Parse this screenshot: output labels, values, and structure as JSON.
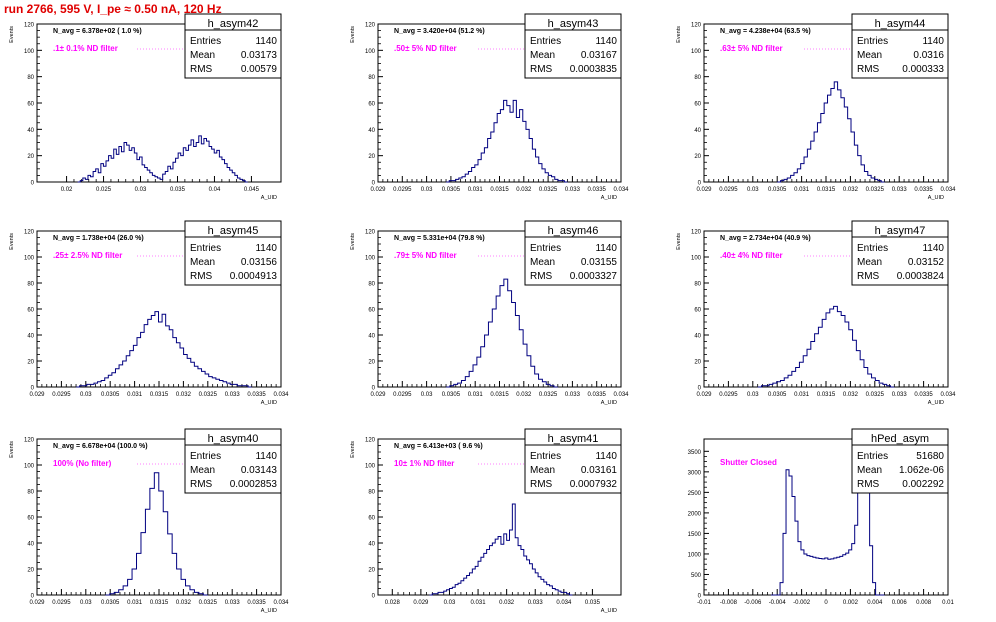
{
  "page": {
    "title": "run 2766,   595 V, I_pe ≈ 0.50 nA, 120 Hz"
  },
  "colors": {
    "title": "#e00000",
    "hist_line": "#000080",
    "filter_label": "#ff00ff",
    "axis": "#000000",
    "background": "#ffffff"
  },
  "stat_labels": {
    "entries": "Entries",
    "mean": "Mean",
    "rms": "RMS"
  },
  "chart_data": [
    {
      "type": "histogram",
      "name": "h_asym42",
      "navg": "N_avg = 6.378e+02 ( 1.0 %)",
      "filter": ".1± 0.1% ND filter",
      "stats": {
        "entries": "1140",
        "mean": "0.03173",
        "rms": "0.00579"
      },
      "xlabel": "A_UID",
      "ylabel": "Events",
      "xlim": [
        0.016,
        0.049
      ],
      "ylim": [
        0,
        120
      ],
      "xticks": [
        "0.02",
        "0.025",
        "0.03",
        "0.035",
        "0.04",
        "0.045"
      ],
      "xtick_values": [
        0.02,
        0.025,
        0.03,
        0.035,
        0.04,
        0.045
      ],
      "yticks": [
        "0",
        "20",
        "40",
        "60",
        "80",
        "100",
        "120"
      ],
      "ytick_values": [
        0,
        20,
        40,
        60,
        80,
        100,
        120
      ],
      "bin_range": [
        0.0215,
        0.0445
      ],
      "values": [
        0,
        1,
        3,
        2,
        5,
        4,
        8,
        10,
        7,
        14,
        12,
        16,
        20,
        18,
        25,
        21,
        27,
        23,
        30,
        28,
        24,
        26,
        22,
        17,
        19,
        13,
        11,
        9,
        7,
        5,
        4,
        3,
        2,
        6,
        8,
        12,
        10,
        15,
        18,
        22,
        20,
        26,
        24,
        28,
        32,
        27,
        30,
        35,
        29,
        33,
        31,
        27,
        25,
        22,
        24,
        19,
        17,
        14,
        11,
        9,
        7,
        5,
        3,
        2,
        1,
        0
      ]
    },
    {
      "type": "histogram",
      "name": "h_asym43",
      "navg": "N_avg = 3.420e+04 (51.2 %)",
      "filter": ".50± 5% ND filter",
      "stats": {
        "entries": "1140",
        "mean": "0.03167",
        "rms": "0.0003835"
      },
      "xlabel": "A_UID",
      "ylabel": "Events",
      "xlim": [
        0.029,
        0.034
      ],
      "ylim": [
        0,
        120
      ],
      "xticks": [
        "0.029",
        "0.0295",
        "0.03",
        "0.0305",
        "0.031",
        "0.0315",
        "0.032",
        "0.0325",
        "0.033",
        "0.0335",
        "0.034"
      ],
      "xtick_values": [
        0.029,
        0.0295,
        0.03,
        0.0305,
        0.031,
        0.0315,
        0.032,
        0.0325,
        0.033,
        0.0335,
        0.034
      ],
      "yticks": [
        "0",
        "20",
        "40",
        "60",
        "80",
        "100",
        "120"
      ],
      "ytick_values": [
        0,
        20,
        40,
        60,
        80,
        100,
        120
      ],
      "bin_range": [
        0.0304,
        0.0329
      ],
      "values": [
        0,
        1,
        1,
        2,
        3,
        4,
        6,
        8,
        11,
        13,
        17,
        22,
        26,
        33,
        38,
        45,
        52,
        55,
        62,
        58,
        53,
        62,
        49,
        55,
        46,
        40,
        33,
        25,
        19,
        14,
        10,
        7,
        5,
        4,
        2,
        1,
        1,
        0
      ]
    },
    {
      "type": "histogram",
      "name": "h_asym44",
      "navg": "N_avg = 4.238e+04 (63.5 %)",
      "filter": ".63± 5% ND filter",
      "stats": {
        "entries": "1140",
        "mean": "0.0316",
        "rms": "0.000333"
      },
      "xlabel": "A_UID",
      "ylabel": "Events",
      "xlim": [
        0.029,
        0.034
      ],
      "ylim": [
        0,
        120
      ],
      "xticks": [
        "0.029",
        "0.0295",
        "0.03",
        "0.0305",
        "0.031",
        "0.0315",
        "0.032",
        "0.0325",
        "0.033",
        "0.0335",
        "0.034"
      ],
      "xtick_values": [
        0.029,
        0.0295,
        0.03,
        0.0305,
        0.031,
        0.0315,
        0.032,
        0.0325,
        0.033,
        0.0335,
        0.034
      ],
      "yticks": [
        "0",
        "20",
        "40",
        "60",
        "80",
        "100",
        "120"
      ],
      "ytick_values": [
        0,
        20,
        40,
        60,
        80,
        100,
        120
      ],
      "bin_range": [
        0.0305,
        0.0327
      ],
      "values": [
        0,
        1,
        2,
        3,
        5,
        7,
        10,
        14,
        19,
        25,
        31,
        38,
        45,
        52,
        60,
        66,
        71,
        76,
        70,
        64,
        57,
        48,
        38,
        28,
        20,
        13,
        8,
        5,
        3,
        2,
        1,
        0
      ]
    },
    {
      "type": "histogram",
      "name": "h_asym45",
      "navg": "N_avg = 1.738e+04 (26.0 %)",
      "filter": ".25± 2.5% ND filter",
      "stats": {
        "entries": "1140",
        "mean": "0.03156",
        "rms": "0.0004913"
      },
      "xlabel": "A_UID",
      "ylabel": "Events",
      "xlim": [
        0.029,
        0.034
      ],
      "ylim": [
        0,
        120
      ],
      "xticks": [
        "0.029",
        "0.0295",
        "0.03",
        "0.0305",
        "0.031",
        "0.0315",
        "0.032",
        "0.0325",
        "0.033",
        "0.0335",
        "0.034"
      ],
      "xtick_values": [
        0.029,
        0.0295,
        0.03,
        0.0305,
        0.031,
        0.0315,
        0.032,
        0.0325,
        0.033,
        0.0335,
        0.034
      ],
      "yticks": [
        "0",
        "20",
        "40",
        "60",
        "80",
        "100",
        "120"
      ],
      "ytick_values": [
        0,
        20,
        40,
        60,
        80,
        100,
        120
      ],
      "bin_range": [
        0.0298,
        0.0334
      ],
      "values": [
        0,
        1,
        1,
        2,
        2,
        3,
        4,
        5,
        7,
        9,
        11,
        14,
        17,
        20,
        24,
        28,
        32,
        38,
        42,
        48,
        52,
        55,
        58,
        50,
        56,
        47,
        44,
        38,
        34,
        30,
        25,
        22,
        19,
        16,
        14,
        12,
        10,
        8,
        7,
        6,
        5,
        4,
        3,
        2,
        2,
        1,
        1,
        1,
        0
      ]
    },
    {
      "type": "histogram",
      "name": "h_asym46",
      "navg": "N_avg = 5.331e+04 (79.8 %)",
      "filter": ".79± 5% ND filter",
      "stats": {
        "entries": "1140",
        "mean": "0.03155",
        "rms": "0.0003327"
      },
      "xlabel": "A_UID",
      "ylabel": "Events",
      "xlim": [
        0.029,
        0.034
      ],
      "ylim": [
        0,
        120
      ],
      "xticks": [
        "0.029",
        "0.0295",
        "0.03",
        "0.0305",
        "0.031",
        "0.0315",
        "0.032",
        "0.0325",
        "0.033",
        "0.0335",
        "0.034"
      ],
      "xtick_values": [
        0.029,
        0.0295,
        0.03,
        0.0305,
        0.031,
        0.0315,
        0.032,
        0.0325,
        0.033,
        0.0335,
        0.034
      ],
      "yticks": [
        "0",
        "20",
        "40",
        "60",
        "80",
        "100",
        "120"
      ],
      "ytick_values": [
        0,
        20,
        40,
        60,
        80,
        100,
        120
      ],
      "bin_range": [
        0.0304,
        0.0327
      ],
      "values": [
        0,
        1,
        2,
        3,
        5,
        8,
        12,
        17,
        23,
        31,
        40,
        50,
        60,
        70,
        78,
        83,
        74,
        65,
        55,
        44,
        33,
        24,
        16,
        10,
        6,
        4,
        2,
        1,
        0
      ]
    },
    {
      "type": "histogram",
      "name": "h_asym47",
      "navg": "N_avg = 2.734e+04 (40.9 %)",
      "filter": ".40± 4% ND filter",
      "stats": {
        "entries": "1140",
        "mean": "0.03152",
        "rms": "0.0003824"
      },
      "xlabel": "A_UID",
      "ylabel": "Events",
      "xlim": [
        0.029,
        0.034
      ],
      "ylim": [
        0,
        120
      ],
      "xticks": [
        "0.029",
        "0.0295",
        "0.03",
        "0.0305",
        "0.031",
        "0.0315",
        "0.032",
        "0.0325",
        "0.033",
        "0.0335",
        "0.034"
      ],
      "xtick_values": [
        0.029,
        0.0295,
        0.03,
        0.0305,
        0.031,
        0.0315,
        0.032,
        0.0325,
        0.033,
        0.0335,
        0.034
      ],
      "yticks": [
        "0",
        "20",
        "40",
        "60",
        "80",
        "100",
        "120"
      ],
      "ytick_values": [
        0,
        20,
        40,
        60,
        80,
        100,
        120
      ],
      "bin_range": [
        0.0301,
        0.0329
      ],
      "values": [
        0,
        1,
        1,
        2,
        3,
        4,
        5,
        7,
        9,
        12,
        15,
        19,
        24,
        29,
        35,
        41,
        46,
        52,
        57,
        60,
        62,
        58,
        55,
        50,
        44,
        36,
        28,
        21,
        15,
        10,
        7,
        5,
        3,
        2,
        1,
        0
      ]
    },
    {
      "type": "histogram",
      "name": "h_asym40",
      "navg": "N_avg = 6.678e+04 (100.0 %)",
      "filter": "100% (No filter)",
      "stats": {
        "entries": "1140",
        "mean": "0.03143",
        "rms": "0.0002853"
      },
      "xlabel": "A_UID",
      "ylabel": "Events",
      "xlim": [
        0.029,
        0.034
      ],
      "ylim": [
        0,
        120
      ],
      "xticks": [
        "0.029",
        "0.0295",
        "0.03",
        "0.0305",
        "0.031",
        "0.0315",
        "0.032",
        "0.0325",
        "0.033",
        "0.0335",
        "0.034"
      ],
      "xtick_values": [
        0.029,
        0.0295,
        0.03,
        0.0305,
        0.031,
        0.0315,
        0.032,
        0.0325,
        0.033,
        0.0335,
        0.034
      ],
      "yticks": [
        "0",
        "20",
        "40",
        "60",
        "80",
        "100",
        "120"
      ],
      "ytick_values": [
        0,
        20,
        40,
        60,
        80,
        100,
        120
      ],
      "bin_range": [
        0.0304,
        0.0325
      ],
      "values": [
        0,
        1,
        2,
        4,
        7,
        12,
        20,
        32,
        48,
        66,
        82,
        94,
        80,
        64,
        47,
        32,
        20,
        12,
        7,
        4,
        2,
        1,
        0
      ]
    },
    {
      "type": "histogram",
      "name": "h_asym41",
      "navg": "N_avg = 6.413e+03 ( 9.6 %)",
      "filter": "10± 1% ND filter",
      "stats": {
        "entries": "1140",
        "mean": "0.03161",
        "rms": "0.0007932"
      },
      "xlabel": "A_UID",
      "ylabel": "Events",
      "xlim": [
        0.0275,
        0.036
      ],
      "ylim": [
        0,
        120
      ],
      "xticks": [
        "0.028",
        "0.029",
        "0.03",
        "0.031",
        "0.032",
        "0.033",
        "0.034",
        "0.035"
      ],
      "xtick_values": [
        0.028,
        0.029,
        0.03,
        0.031,
        0.032,
        0.033,
        0.034,
        0.035
      ],
      "yticks": [
        "0",
        "20",
        "40",
        "60",
        "80",
        "100",
        "120"
      ],
      "ytick_values": [
        0,
        20,
        40,
        60,
        80,
        100,
        120
      ],
      "bin_range": [
        0.0293,
        0.0343
      ],
      "values": [
        0,
        1,
        1,
        2,
        2,
        3,
        4,
        5,
        6,
        8,
        9,
        11,
        13,
        15,
        17,
        20,
        22,
        26,
        29,
        32,
        35,
        38,
        40,
        43,
        45,
        39,
        47,
        42,
        50,
        70,
        44,
        38,
        35,
        30,
        27,
        24,
        20,
        17,
        14,
        12,
        10,
        8,
        7,
        5,
        4,
        3,
        2,
        2,
        1,
        0
      ]
    },
    {
      "type": "histogram",
      "name": "hPed_asym",
      "navg": "",
      "filter": "Shutter Closed",
      "stats": {
        "entries": "51680",
        "mean": "1.062e-06",
        "rms": "0.002292"
      },
      "xlabel": "",
      "ylabel": "",
      "xlim": [
        -0.01,
        0.01
      ],
      "ylim": [
        0,
        3800
      ],
      "xticks": [
        "-0.01",
        "-0.008",
        "-0.006",
        "-0.004",
        "-0.002",
        "0",
        "0.002",
        "0.004",
        "0.006",
        "0.008",
        "0.01"
      ],
      "xtick_values": [
        -0.01,
        -0.008,
        -0.006,
        -0.004,
        -0.002,
        0,
        0.002,
        0.004,
        0.006,
        0.008,
        0.01
      ],
      "yticks": [
        "0",
        "500",
        "1000",
        "1500",
        "2000",
        "2500",
        "3000",
        "3500"
      ],
      "ytick_values": [
        0,
        500,
        1000,
        1500,
        2000,
        2500,
        3000,
        3500
      ],
      "bin_range": [
        -0.0045,
        0.0048
      ],
      "values": [
        0,
        0,
        0,
        300,
        1500,
        3050,
        2900,
        2400,
        1800,
        1300,
        1100,
        1000,
        960,
        940,
        920,
        900,
        890,
        880,
        900,
        870,
        880,
        900,
        920,
        940,
        980,
        1020,
        1100,
        1250,
        1700,
        2700,
        3600,
        3400,
        2600,
        1200,
        300,
        0,
        0,
        0
      ]
    }
  ]
}
